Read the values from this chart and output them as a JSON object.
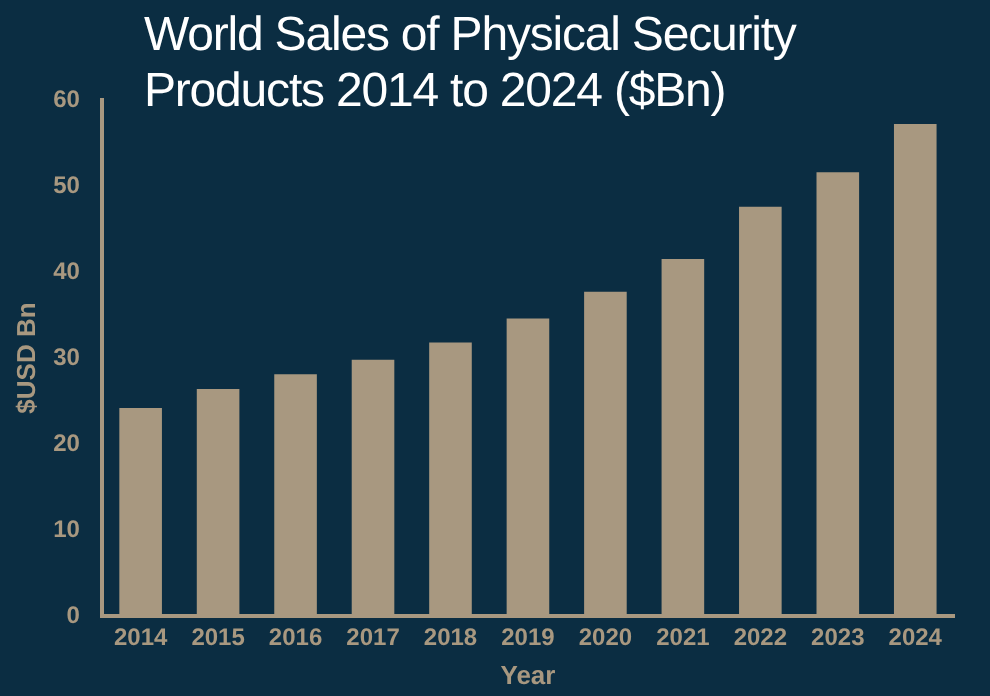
{
  "chart_data": {
    "type": "bar",
    "title": "World Sales of Physical Security Products 2014 to 2024 ($Bn)",
    "xlabel": "Year",
    "ylabel": "$USD Bn",
    "categories": [
      "2014",
      "2015",
      "2016",
      "2017",
      "2018",
      "2019",
      "2020",
      "2021",
      "2022",
      "2023",
      "2024"
    ],
    "values": [
      24.2,
      26.4,
      28.1,
      29.8,
      31.8,
      34.6,
      37.7,
      41.5,
      47.6,
      51.6,
      57.2
    ],
    "color": "#a89880",
    "ylim": [
      0,
      60
    ],
    "yticks": [
      0,
      10,
      20,
      30,
      40,
      50,
      60
    ],
    "grid": false,
    "legend": false
  }
}
